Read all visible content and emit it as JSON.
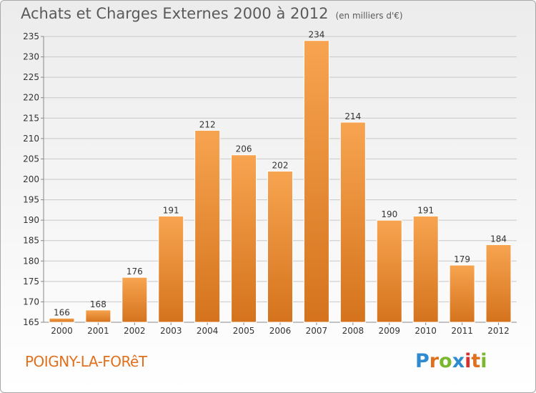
{
  "header": {
    "title": "Achats et Charges Externes 2000 à 2012",
    "unit": "(en milliers d'€)"
  },
  "footer": {
    "commune": "POIGNY-LA-FORêT",
    "logo_text": "Proxiti",
    "logo_colors": [
      "#2e8bd0",
      "#e0701d",
      "#7cb82f",
      "#2e8bd0",
      "#d8302f",
      "#e0701d",
      "#7cb82f"
    ]
  },
  "colors": {
    "bar_top": "#f7a450",
    "bar_bottom": "#d5731d",
    "grid": "#c8c8c8",
    "axis_text": "#333333"
  },
  "chart_data": {
    "type": "bar",
    "title": "Achats et Charges Externes 2000 à 2012",
    "subtitle": "(en milliers d'€)",
    "categories": [
      "2000",
      "2001",
      "2002",
      "2003",
      "2004",
      "2005",
      "2006",
      "2007",
      "2008",
      "2009",
      "2010",
      "2011",
      "2012"
    ],
    "values": [
      166,
      168,
      176,
      191,
      212,
      206,
      202,
      234,
      214,
      190,
      191,
      179,
      184
    ],
    "ylim": [
      165,
      235
    ],
    "yticks": [
      165,
      170,
      175,
      180,
      185,
      190,
      195,
      200,
      205,
      210,
      215,
      220,
      225,
      230,
      235
    ],
    "grid": true,
    "data_labels": true
  }
}
